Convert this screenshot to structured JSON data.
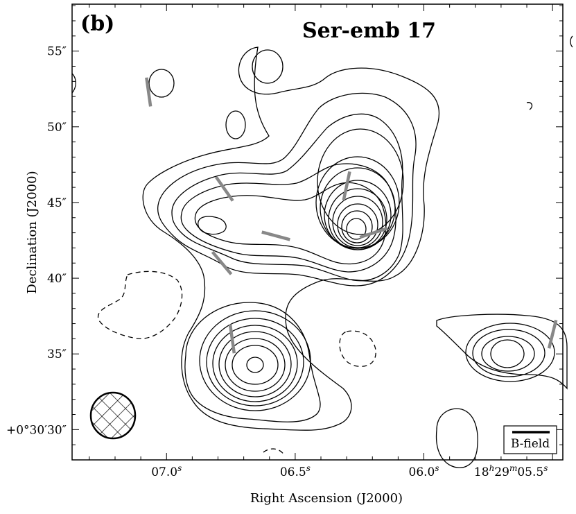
{
  "chart_data": {
    "type": "contour",
    "panel_label": "(b)",
    "title": "Ser-emb 17",
    "xlabel": "Right Ascension (J2000)",
    "ylabel": "Declination (J2000)",
    "x_ticks": [
      {
        "value": 7.0,
        "label": "07.0",
        "sup": "s"
      },
      {
        "value": 6.5,
        "label": "06.5",
        "sup": "s"
      },
      {
        "value": 6.0,
        "label": "06.0",
        "sup": "s"
      },
      {
        "value": 5.5,
        "label": "18",
        "sup": "h",
        "label2": "29",
        "sup2": "m",
        "label3": "05.5",
        "sup3": "s"
      }
    ],
    "y_ticks": [
      {
        "value": 55,
        "label": "55″"
      },
      {
        "value": 50,
        "label": "50″"
      },
      {
        "value": 45,
        "label": "45″"
      },
      {
        "value": 40,
        "label": "40″"
      },
      {
        "value": 35,
        "label": "35″"
      },
      {
        "value": 30,
        "label": "+0°30′30″"
      }
    ],
    "xlim": [
      7.367,
      5.46
    ],
    "ylim": [
      28.0,
      58.1
    ],
    "legend_label": "B-field",
    "legend_placement": "bottom-right",
    "beam_placement": "bottom-left",
    "colors": {
      "contour": "#000000",
      "vectors": "#888888",
      "background": "#ffffff"
    },
    "b_field_vectors": [
      {
        "ra": 7.07,
        "dec": 52.3,
        "pa": 8
      },
      {
        "ra": 6.775,
        "dec": 45.9,
        "pa": 35
      },
      {
        "ra": 6.575,
        "dec": 42.8,
        "pa": 75
      },
      {
        "ra": 6.785,
        "dec": 41.0,
        "pa": 40
      },
      {
        "ra": 6.3,
        "dec": 46.1,
        "pa": -12
      },
      {
        "ra": 6.195,
        "dec": 43.0,
        "pa": -72
      },
      {
        "ra": 6.745,
        "dec": 36.0,
        "pa": 8
      },
      {
        "ra": 5.5,
        "dec": 36.3,
        "pa": -14
      }
    ]
  }
}
